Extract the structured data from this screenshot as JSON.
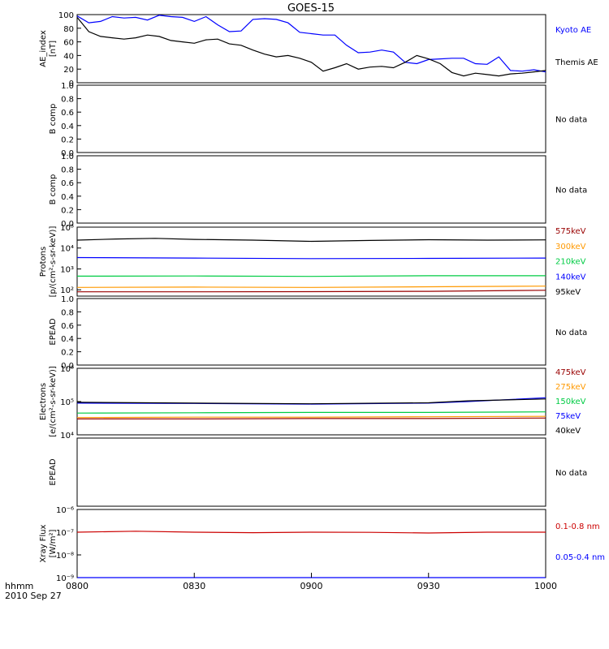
{
  "title": "GOES-15",
  "time_axis": {
    "ticks": [
      "0800",
      "0830",
      "0900",
      "0930",
      "1000"
    ],
    "corner_label": "hhmm",
    "date_label": "2010 Sep 27"
  },
  "colors": {
    "black": "#000000",
    "blue": "#0000ff",
    "green": "#00cc44",
    "orange": "#ff9900",
    "red": "#cc0000",
    "darkred": "#990000"
  },
  "chart_data": [
    {
      "type": "line",
      "ylabel": "AE_index",
      "ylabel2": "[nT]",
      "ylim": [
        0,
        100
      ],
      "yticks": [
        "0",
        "20",
        "40",
        "60",
        "80",
        "100"
      ],
      "x_unit": "minutes after 0800",
      "series": [
        {
          "name": "Kyoto AE",
          "color": "#0000ff",
          "x": [
            0,
            3,
            6,
            9,
            12,
            15,
            18,
            21,
            24,
            27,
            30,
            33,
            36,
            39,
            42,
            45,
            48,
            51,
            54,
            57,
            60,
            63,
            66,
            69,
            72,
            75,
            78,
            81,
            84,
            87,
            90,
            93,
            96,
            99,
            102,
            105,
            108,
            111,
            114,
            117,
            120
          ],
          "y": [
            98,
            88,
            90,
            97,
            95,
            96,
            92,
            99,
            97,
            96,
            90,
            97,
            85,
            75,
            76,
            93,
            94,
            93,
            88,
            74,
            72,
            70,
            70,
            55,
            44,
            45,
            48,
            45,
            30,
            28,
            34,
            35,
            36,
            36,
            28,
            27,
            38,
            18,
            17,
            19,
            16
          ]
        },
        {
          "name": "Themis AE",
          "color": "#000000",
          "x": [
            0,
            3,
            6,
            9,
            12,
            15,
            18,
            21,
            24,
            27,
            30,
            33,
            36,
            39,
            42,
            45,
            48,
            51,
            54,
            57,
            60,
            63,
            66,
            69,
            72,
            75,
            78,
            81,
            84,
            87,
            90,
            93,
            96,
            99,
            102,
            105,
            108,
            111,
            114,
            117,
            120
          ],
          "y": [
            96,
            75,
            68,
            66,
            64,
            66,
            70,
            68,
            62,
            60,
            58,
            63,
            64,
            57,
            55,
            48,
            42,
            38,
            40,
            36,
            30,
            17,
            22,
            28,
            20,
            23,
            24,
            22,
            30,
            40,
            35,
            28,
            15,
            10,
            14,
            12,
            10,
            13,
            14,
            16,
            18
          ]
        }
      ]
    },
    {
      "type": "line",
      "ylabel": "B comp",
      "ylim": [
        0,
        1
      ],
      "yticks": [
        "0.0",
        "0.2",
        "0.4",
        "0.6",
        "0.8",
        "1.0"
      ],
      "note": "No data",
      "series": []
    },
    {
      "type": "line",
      "ylabel": "B comp",
      "ylim": [
        0,
        1
      ],
      "yticks": [
        "0.0",
        "0.2",
        "0.4",
        "0.6",
        "0.8",
        "1.0"
      ],
      "note": "No data",
      "series": []
    },
    {
      "type": "line",
      "ylabel": "Protons",
      "ylabel2": "[p/(cm²-s-sr-keV)]",
      "log_scale": true,
      "ylim": [
        50,
        100000
      ],
      "yticks": [
        "10²",
        "10³",
        "10⁴",
        "10⁵"
      ],
      "series": [
        {
          "name": "575keV",
          "color": "#990000",
          "x": [
            0,
            30,
            60,
            90,
            120
          ],
          "y": [
            80,
            80,
            82,
            85,
            95
          ]
        },
        {
          "name": "300keV",
          "color": "#ff9900",
          "x": [
            0,
            30,
            60,
            90,
            120
          ],
          "y": [
            130,
            135,
            130,
            140,
            150
          ]
        },
        {
          "name": "210keV",
          "color": "#00cc44",
          "x": [
            0,
            30,
            60,
            90,
            120
          ],
          "y": [
            450,
            460,
            440,
            470,
            470
          ]
        },
        {
          "name": "140keV",
          "color": "#0000ff",
          "x": [
            0,
            30,
            60,
            90,
            120
          ],
          "y": [
            3500,
            3300,
            3100,
            3200,
            3300
          ]
        },
        {
          "name": "95keV",
          "color": "#000000",
          "x": [
            0,
            10,
            20,
            30,
            45,
            60,
            75,
            90,
            105,
            120
          ],
          "y": [
            24000,
            27000,
            29000,
            26000,
            24000,
            21000,
            23000,
            25000,
            24000,
            24500
          ]
        }
      ]
    },
    {
      "type": "line",
      "ylabel": "EPEAD",
      "ylim": [
        0,
        1
      ],
      "yticks": [
        "0.0",
        "0.2",
        "0.4",
        "0.6",
        "0.8",
        "1.0"
      ],
      "note": "No data",
      "series": []
    },
    {
      "type": "line",
      "ylabel": "Electrons",
      "ylabel2": "[e/(cm²-s-sr-keV)]",
      "log_scale": true,
      "ylim": [
        10000,
        1000000
      ],
      "yticks": [
        "10⁴",
        "10⁵",
        "10⁶"
      ],
      "series": [
        {
          "name": "475keV",
          "color": "#990000",
          "x": [
            0,
            30,
            60,
            90,
            120
          ],
          "y": [
            30000,
            30000,
            31000,
            31000,
            32000
          ]
        },
        {
          "name": "275keV",
          "color": "#ff9900",
          "x": [
            0,
            30,
            60,
            90,
            120
          ],
          "y": [
            33000,
            34000,
            34000,
            35000,
            36000
          ]
        },
        {
          "name": "150keV",
          "color": "#00cc44",
          "x": [
            0,
            30,
            60,
            90,
            120
          ],
          "y": [
            45000,
            46000,
            47000,
            47000,
            49000
          ]
        },
        {
          "name": "75keV",
          "color": "#0000ff",
          "x": [
            0,
            30,
            60,
            90,
            100,
            120
          ],
          "y": [
            90000,
            88000,
            84000,
            90000,
            100000,
            130000
          ]
        },
        {
          "name": "40keV",
          "color": "#000000",
          "x": [
            0,
            30,
            60,
            90,
            100,
            120
          ],
          "y": [
            95000,
            90000,
            86000,
            92000,
            105000,
            120000
          ]
        }
      ]
    },
    {
      "type": "line",
      "ylabel": "EPEAD",
      "ylim": [
        0,
        1
      ],
      "yticks": [],
      "note": "No data",
      "series": []
    },
    {
      "type": "line",
      "ylabel": "Xray Flux",
      "ylabel2": "[W/m²]",
      "log_scale": true,
      "ylim": [
        1e-09,
        1e-06
      ],
      "yticks": [
        "10⁻⁹",
        "10⁻⁸",
        "10⁻⁷",
        "10⁻⁶"
      ],
      "series": [
        {
          "name": "0.1-0.8 nm",
          "color": "#cc0000",
          "x": [
            0,
            15,
            30,
            45,
            60,
            75,
            90,
            105,
            120
          ],
          "y": [
            1e-07,
            1.1e-07,
            1e-07,
            9.5e-08,
            1e-07,
            9.8e-08,
            9.2e-08,
            1e-07,
            1e-07
          ]
        },
        {
          "name": "0.05-0.4 nm",
          "color": "#0000ff",
          "x": [
            0,
            120
          ],
          "y": [
            1e-09,
            1e-09
          ]
        }
      ]
    }
  ]
}
